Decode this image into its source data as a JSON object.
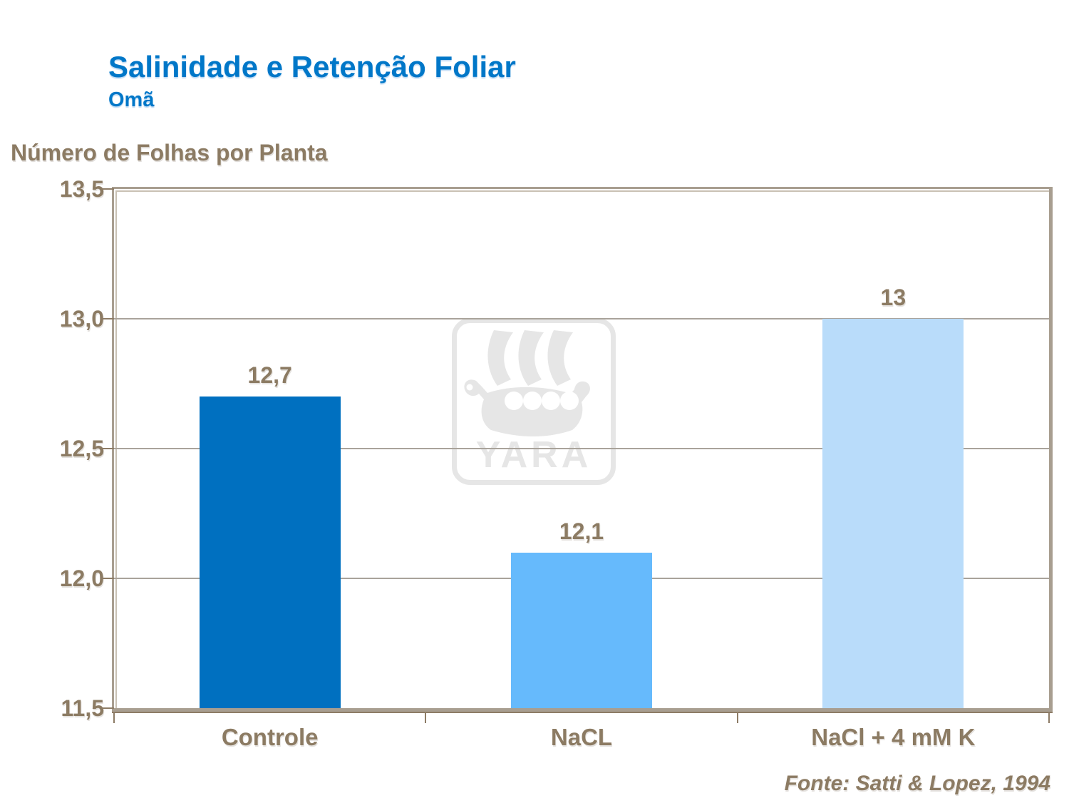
{
  "header": {
    "title": "Salinidade e Retenção Foliar",
    "subtitle": "Omã"
  },
  "chart_data": {
    "type": "bar",
    "title": "Número de Folhas por Planta",
    "categories": [
      "Controle",
      "NaCL",
      "NaCl + 4 mM K"
    ],
    "values": [
      12.7,
      12.1,
      13
    ],
    "value_labels": [
      "12,7",
      "12,1",
      "13"
    ],
    "ylim": [
      11.5,
      13.5
    ],
    "yticks": [
      13.5,
      13.0,
      12.5,
      12.0,
      11.5
    ],
    "ytick_labels": [
      "13,5",
      "13,0",
      "12,5",
      "12,0",
      "11,5"
    ],
    "grid": true,
    "legend": false,
    "bar_colors": [
      "#0070C0",
      "#66BAFC",
      "#B9DCFA"
    ]
  },
  "watermark": {
    "brand": "YARA"
  },
  "footer": {
    "source": "Fonte: Satti & Lopez, 1994"
  },
  "colors": {
    "title_blue": "#0077C8",
    "text_brown": "#8C7B63",
    "plot_border": "#A89E90",
    "gridline": "#A9A39B",
    "watermark_gray": "#E6E6E6"
  }
}
